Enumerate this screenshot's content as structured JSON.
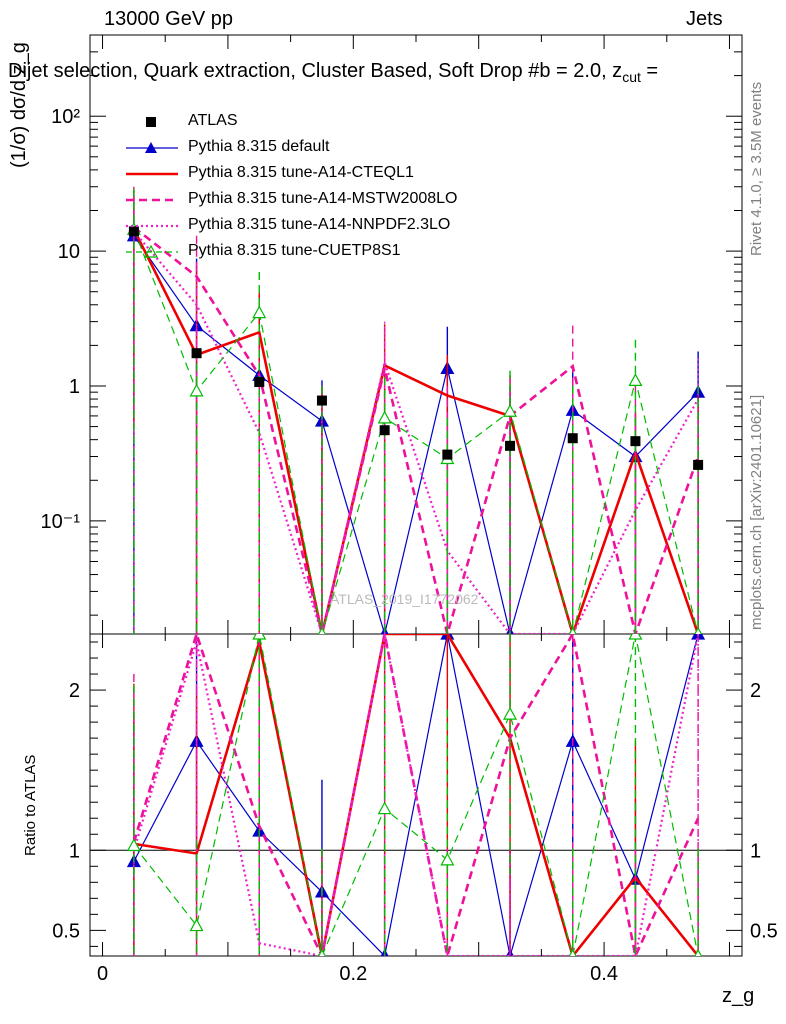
{
  "header": {
    "energy_label": "13000 GeV pp",
    "category_label": "Jets",
    "title": "Dijet selection, Quark extraction, Cluster Based, Soft Drop #b = 2.0, z",
    "title_sub": "cut",
    "title_tail": " ="
  },
  "side_text": {
    "rivet": "Rivet 4.1.0, ≥ 3.5M events",
    "mcplots": "mcplots.cern.ch [arXiv:2401.10621]"
  },
  "watermark": "ATLAS_2019_I1772062",
  "colors": {
    "atlas": "#000000",
    "default": "#0000cc",
    "cteql1": "#ee0000",
    "mstw": "#ee1199",
    "nnpdf": "#ee22cc",
    "cuetp": "#00bb00"
  },
  "chart_data": {
    "type": "line",
    "title": "Dijet selection, Quark extraction, Cluster Based, Soft Drop #b = 2.0, z_cut =",
    "xlabel": "z_g",
    "ylabel": "(1/σ) dσ/d z_g",
    "ratio_ylabel": "Ratio to ATLAS",
    "xlim": [
      -0.01,
      0.51
    ],
    "ylim": [
      0.0145,
      400
    ],
    "yscale": "log",
    "ratio_ylim": [
      0.34,
      2.35
    ],
    "x_ticks": [
      0,
      0.2,
      0.4
    ],
    "x_tick_labels": [
      "0",
      "0.2",
      "0.4"
    ],
    "y_ticks": [
      0.1,
      1,
      10,
      100
    ],
    "y_tick_labels": [
      "10⁻¹",
      "1",
      "10",
      "10²"
    ],
    "ratio_ticks": [
      0.5,
      1,
      2
    ],
    "ratio_tick_labels": [
      "0.5",
      "1",
      "2"
    ],
    "x": [
      0.025,
      0.075,
      0.125,
      0.175,
      0.225,
      0.275,
      0.325,
      0.375,
      0.425,
      0.475
    ],
    "data": {
      "name": "ATLAS",
      "values": [
        14.0,
        1.75,
        1.07,
        0.78,
        0.47,
        0.31,
        0.36,
        0.41,
        0.39,
        0.26
      ]
    },
    "series": [
      {
        "name": "Pythia 8.315 default",
        "key": "default",
        "style": "solid",
        "width": 1.2,
        "marker": "triangle",
        "values": [
          13.0,
          2.8,
          1.2,
          0.55,
          0.001,
          1.35,
          0.001,
          0.66,
          0.3,
          0.9
        ],
        "err": [
          13.0,
          6.0,
          3.5,
          0.55,
          1.0,
          1.4,
          1.0,
          0.7,
          0.32,
          0.9
        ],
        "ratio": [
          0.93,
          1.68,
          1.12,
          0.74,
          0.01,
          4.2,
          0.01,
          1.68,
          0.82,
          3.4
        ],
        "ratio_err": [
          0.93,
          1.0,
          0.8,
          0.7,
          1.0,
          1.0,
          1.0,
          0.8,
          0.5,
          1.0
        ]
      },
      {
        "name": "Pythia 8.315 tune-A14-CTEQL1",
        "key": "cteql1",
        "style": "solid",
        "width": 2.6,
        "marker": "none",
        "values": [
          14.5,
          1.7,
          2.5,
          0.001,
          1.42,
          0.85,
          0.6,
          0.001,
          0.32,
          0.001
        ],
        "err": [
          14.0,
          6.0,
          2.5,
          1.0,
          1.45,
          0.85,
          0.6,
          1.0,
          0.32,
          1.0
        ],
        "ratio": [
          1.04,
          0.98,
          2.3,
          0.01,
          3.0,
          2.7,
          1.7,
          0.01,
          0.83,
          0.01
        ],
        "ratio_err": [
          1.0,
          1.0,
          2.3,
          1.0,
          3.0,
          2.7,
          1.7,
          1.0,
          0.85,
          1.0
        ]
      },
      {
        "name": "Pythia 8.315 tune-A14-MSTW2008LO",
        "key": "mstw",
        "style": "dashed",
        "width": 2.6,
        "marker": "none",
        "values": [
          15.0,
          6.5,
          1.2,
          0.001,
          1.35,
          0.001,
          0.6,
          1.4,
          0.001,
          0.3
        ],
        "err": [
          15.0,
          6.5,
          1.2,
          1.0,
          1.35,
          1.0,
          0.6,
          1.4,
          1.0,
          0.3
        ],
        "ratio": [
          1.05,
          3.6,
          1.15,
          0.01,
          2.9,
          0.01,
          1.7,
          3.4,
          0.01,
          1.2
        ],
        "ratio_err": [
          1.05,
          3.6,
          1.15,
          1.0,
          2.9,
          1.0,
          1.7,
          3.4,
          1.0,
          1.2
        ]
      },
      {
        "name": "Pythia 8.315 tune-A14-NNPDF2.3LO",
        "key": "nnpdf",
        "style": "dotted",
        "width": 2.2,
        "marker": "none",
        "values": [
          14.0,
          4.0,
          0.45,
          0.001,
          1.5,
          0.06,
          0.001,
          0.001,
          0.12,
          0.8
        ],
        "err": [
          14.0,
          4.0,
          0.45,
          1.0,
          1.5,
          0.06,
          1.0,
          1.0,
          0.12,
          0.8
        ],
        "ratio": [
          1.0,
          2.3,
          0.42,
          0.01,
          3.2,
          0.2,
          0.01,
          0.01,
          0.3,
          3.0
        ],
        "ratio_err": [
          1.0,
          2.3,
          0.42,
          1.0,
          3.2,
          0.2,
          1.0,
          1.0,
          0.3,
          3.0
        ]
      },
      {
        "name": "Pythia 8.315 tune-CUETP8S1",
        "key": "cuetp",
        "style": "dashed",
        "width": 1.2,
        "marker": "triangle-open",
        "values": [
          14.5,
          0.92,
          3.5,
          0.001,
          0.58,
          0.29,
          0.65,
          0.001,
          1.1,
          0.001
        ],
        "err": [
          14.5,
          0.92,
          3.5,
          1.0,
          0.58,
          0.29,
          0.65,
          1.0,
          1.1,
          1.0
        ],
        "ratio": [
          1.03,
          0.53,
          3.0,
          0.01,
          1.26,
          0.94,
          1.85,
          0.01,
          2.8,
          0.01
        ],
        "ratio_err": [
          1.0,
          0.53,
          3.0,
          1.0,
          1.0,
          0.94,
          1.0,
          1.0,
          2.8,
          1.0
        ]
      }
    ]
  }
}
